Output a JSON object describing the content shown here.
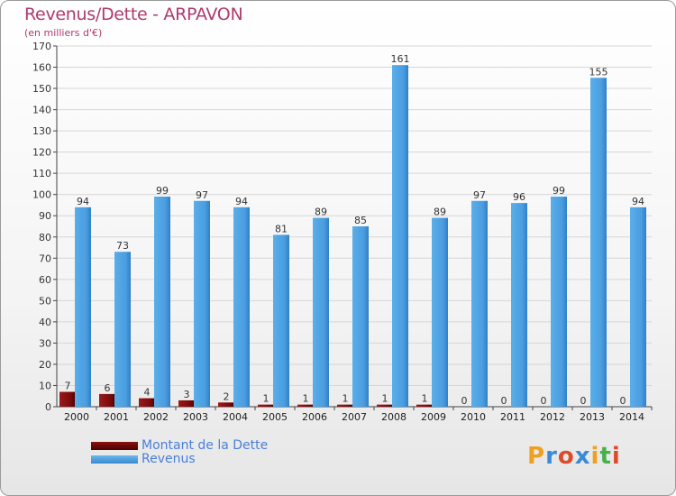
{
  "header": {
    "title": "Revenus/Dette - ARPAVON",
    "subtitle": "(en milliers d'€)"
  },
  "chart_data": {
    "type": "bar",
    "title": "Revenus/Dette - ARPAVON",
    "ylabel": "(en milliers d'€)",
    "xlabel": "",
    "categories": [
      "2000",
      "2001",
      "2002",
      "2003",
      "2004",
      "2005",
      "2006",
      "2007",
      "2008",
      "2009",
      "2010",
      "2011",
      "2012",
      "2013",
      "2014"
    ],
    "series": [
      {
        "name": "Montant de la Dette",
        "color": "#7a0a0a",
        "values": [
          7,
          6,
          4,
          3,
          2,
          1,
          1,
          1,
          1,
          1,
          0,
          0,
          0,
          0,
          0
        ]
      },
      {
        "name": "Revenus",
        "color": "#4a9de0",
        "values": [
          94,
          73,
          99,
          97,
          94,
          81,
          89,
          85,
          161,
          89,
          97,
          96,
          99,
          155,
          94
        ]
      }
    ],
    "ylim": [
      0,
      170
    ],
    "yticks": [
      0,
      10,
      20,
      30,
      40,
      50,
      60,
      70,
      80,
      90,
      100,
      110,
      120,
      130,
      140,
      150,
      160,
      170
    ],
    "grid": true,
    "legend": "bottom-left"
  },
  "legend": {
    "items": [
      {
        "label": "Montant de la Dette",
        "color": "#6b0a0a"
      },
      {
        "label": "Revenus",
        "color": "#4a9de0"
      }
    ]
  },
  "logo": {
    "letters": [
      "P",
      "r",
      "o",
      "x",
      "i",
      "t",
      "i"
    ],
    "colors": [
      "#f0a020",
      "#3a8ad8",
      "#e04a2a",
      "#3a8ad8",
      "#f0a020",
      "#4ab04a",
      "#e04a2a"
    ]
  }
}
